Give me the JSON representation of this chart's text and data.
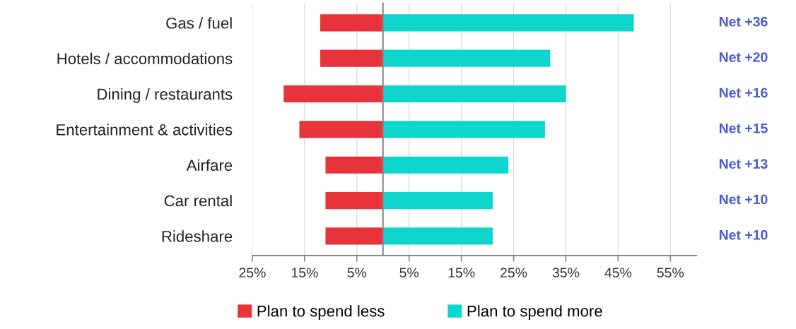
{
  "chart_data": {
    "type": "bar",
    "orientation": "horizontal",
    "stacked": true,
    "categories": [
      "Gas / fuel",
      "Hotels / accommodations",
      "Dining / restaurants",
      "Entertainment & activities",
      "Airfare",
      "Car rental",
      "Rideshare"
    ],
    "series": [
      {
        "name": "Plan to spend less",
        "color": "#e8333a",
        "values": [
          -12,
          -12,
          -19,
          -16,
          -11,
          -11,
          -11
        ]
      },
      {
        "name": "Plan to spend more",
        "color": "#0fd6cc",
        "values": [
          48,
          32,
          35,
          31,
          24,
          21,
          21
        ]
      }
    ],
    "xlim": [
      -25,
      60
    ],
    "xticks": [
      {
        "value": -25,
        "label": "25%"
      },
      {
        "value": -15,
        "label": "15%"
      },
      {
        "value": -5,
        "label": "5%"
      },
      {
        "value": 5,
        "label": "5%"
      },
      {
        "value": 15,
        "label": "15%"
      },
      {
        "value": 25,
        "label": "25%"
      },
      {
        "value": 35,
        "label": "35%"
      },
      {
        "value": 45,
        "label": "45%"
      },
      {
        "value": 55,
        "label": "55%"
      }
    ],
    "grid": "x",
    "legend": "bottom",
    "annotations": [
      "Net +36",
      "Net +20",
      "Net +16",
      "Net +15",
      "Net +13",
      "Net +10",
      "Net +10"
    ]
  }
}
